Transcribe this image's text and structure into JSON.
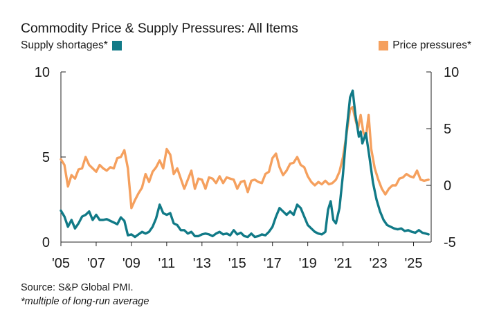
{
  "chart_data": {
    "type": "line",
    "title": "Commodity Price & Supply Pressures: All Items",
    "x_range": [
      2005,
      2026
    ],
    "xticks": [
      {
        "value": 2005,
        "label": "'05"
      },
      {
        "value": 2007,
        "label": "'07"
      },
      {
        "value": 2009,
        "label": "'09"
      },
      {
        "value": 2011,
        "label": "'11"
      },
      {
        "value": 2013,
        "label": "'13"
      },
      {
        "value": 2015,
        "label": "'15"
      },
      {
        "value": 2017,
        "label": "'17"
      },
      {
        "value": 2019,
        "label": "'19"
      },
      {
        "value": 2021,
        "label": "'21"
      },
      {
        "value": 2023,
        "label": "'23"
      },
      {
        "value": 2025,
        "label": "'25"
      }
    ],
    "left_axis": {
      "range": [
        0,
        10
      ],
      "ticks": [
        {
          "value": 0,
          "label": "0"
        },
        {
          "value": 5,
          "label": "5"
        },
        {
          "value": 10,
          "label": "10"
        }
      ]
    },
    "right_axis": {
      "range": [
        -5,
        10
      ],
      "ticks": [
        {
          "value": -5,
          "label": "-5"
        },
        {
          "value": 0,
          "label": "0"
        },
        {
          "value": 5,
          "label": "5"
        },
        {
          "value": 10,
          "label": "10"
        }
      ]
    },
    "series": [
      {
        "name": "Supply shortages*",
        "axis": "left",
        "color": "#117a87",
        "points": [
          [
            2005.0,
            1.85
          ],
          [
            2005.2,
            1.5
          ],
          [
            2005.4,
            0.9
          ],
          [
            2005.6,
            1.3
          ],
          [
            2005.8,
            0.8
          ],
          [
            2006.0,
            1.1
          ],
          [
            2006.2,
            1.5
          ],
          [
            2006.4,
            1.6
          ],
          [
            2006.6,
            1.8
          ],
          [
            2006.8,
            1.3
          ],
          [
            2007.0,
            1.6
          ],
          [
            2007.2,
            1.3
          ],
          [
            2007.4,
            1.3
          ],
          [
            2007.6,
            1.35
          ],
          [
            2007.8,
            1.25
          ],
          [
            2008.0,
            1.15
          ],
          [
            2008.2,
            1.05
          ],
          [
            2008.4,
            1.45
          ],
          [
            2008.6,
            1.25
          ],
          [
            2008.8,
            0.4
          ],
          [
            2009.0,
            0.45
          ],
          [
            2009.2,
            0.3
          ],
          [
            2009.4,
            0.45
          ],
          [
            2009.6,
            0.6
          ],
          [
            2009.8,
            0.5
          ],
          [
            2010.0,
            0.6
          ],
          [
            2010.2,
            0.9
          ],
          [
            2010.4,
            1.4
          ],
          [
            2010.6,
            2.2
          ],
          [
            2010.8,
            1.7
          ],
          [
            2011.0,
            1.6
          ],
          [
            2011.2,
            1.7
          ],
          [
            2011.4,
            1.1
          ],
          [
            2011.6,
            1.0
          ],
          [
            2011.8,
            0.7
          ],
          [
            2012.0,
            0.7
          ],
          [
            2012.2,
            0.5
          ],
          [
            2012.4,
            0.6
          ],
          [
            2012.6,
            0.35
          ],
          [
            2012.8,
            0.35
          ],
          [
            2013.0,
            0.45
          ],
          [
            2013.2,
            0.5
          ],
          [
            2013.4,
            0.45
          ],
          [
            2013.6,
            0.35
          ],
          [
            2013.8,
            0.5
          ],
          [
            2014.0,
            0.6
          ],
          [
            2014.2,
            0.45
          ],
          [
            2014.4,
            0.5
          ],
          [
            2014.6,
            0.4
          ],
          [
            2014.8,
            0.7
          ],
          [
            2015.0,
            0.45
          ],
          [
            2015.2,
            0.55
          ],
          [
            2015.4,
            0.35
          ],
          [
            2015.6,
            0.3
          ],
          [
            2015.8,
            0.5
          ],
          [
            2016.0,
            0.3
          ],
          [
            2016.2,
            0.35
          ],
          [
            2016.4,
            0.45
          ],
          [
            2016.6,
            0.4
          ],
          [
            2016.8,
            0.6
          ],
          [
            2017.0,
            0.9
          ],
          [
            2017.2,
            1.5
          ],
          [
            2017.4,
            2.0
          ],
          [
            2017.6,
            1.8
          ],
          [
            2017.8,
            1.6
          ],
          [
            2018.0,
            1.8
          ],
          [
            2018.2,
            1.6
          ],
          [
            2018.4,
            2.2
          ],
          [
            2018.6,
            2.0
          ],
          [
            2018.8,
            1.5
          ],
          [
            2019.0,
            1.0
          ],
          [
            2019.2,
            0.8
          ],
          [
            2019.4,
            0.6
          ],
          [
            2019.6,
            0.5
          ],
          [
            2019.8,
            0.45
          ],
          [
            2020.0,
            0.6
          ],
          [
            2020.15,
            1.9
          ],
          [
            2020.3,
            2.4
          ],
          [
            2020.45,
            1.3
          ],
          [
            2020.6,
            1.1
          ],
          [
            2020.8,
            2.0
          ],
          [
            2021.0,
            4.0
          ],
          [
            2021.2,
            6.5
          ],
          [
            2021.4,
            8.5
          ],
          [
            2021.55,
            8.9
          ],
          [
            2021.7,
            7.5
          ],
          [
            2021.9,
            6.2
          ],
          [
            2022.0,
            6.5
          ],
          [
            2022.1,
            5.8
          ],
          [
            2022.3,
            6.4
          ],
          [
            2022.5,
            5.0
          ],
          [
            2022.7,
            3.5
          ],
          [
            2022.9,
            2.5
          ],
          [
            2023.1,
            1.8
          ],
          [
            2023.3,
            1.3
          ],
          [
            2023.5,
            1.0
          ],
          [
            2023.7,
            0.9
          ],
          [
            2023.9,
            0.8
          ],
          [
            2024.1,
            0.75
          ],
          [
            2024.3,
            0.8
          ],
          [
            2024.5,
            0.65
          ],
          [
            2024.7,
            0.7
          ],
          [
            2024.9,
            0.6
          ],
          [
            2025.1,
            0.55
          ],
          [
            2025.3,
            0.7
          ],
          [
            2025.5,
            0.55
          ],
          [
            2025.7,
            0.5
          ],
          [
            2025.85,
            0.45
          ]
        ]
      },
      {
        "name": "Price pressures*",
        "axis": "right",
        "color": "#f5a05e",
        "points": [
          [
            2005.0,
            2.3
          ],
          [
            2005.2,
            1.8
          ],
          [
            2005.4,
            -0.1
          ],
          [
            2005.6,
            0.9
          ],
          [
            2005.8,
            0.6
          ],
          [
            2006.0,
            1.4
          ],
          [
            2006.2,
            1.5
          ],
          [
            2006.4,
            2.5
          ],
          [
            2006.6,
            1.8
          ],
          [
            2006.8,
            1.5
          ],
          [
            2007.0,
            1.2
          ],
          [
            2007.2,
            1.8
          ],
          [
            2007.4,
            1.5
          ],
          [
            2007.6,
            1.3
          ],
          [
            2007.8,
            1.6
          ],
          [
            2008.0,
            1.5
          ],
          [
            2008.2,
            2.4
          ],
          [
            2008.4,
            2.5
          ],
          [
            2008.6,
            3.1
          ],
          [
            2008.8,
            1.5
          ],
          [
            2009.0,
            -2.0
          ],
          [
            2009.2,
            -1.3
          ],
          [
            2009.4,
            -0.7
          ],
          [
            2009.6,
            -0.2
          ],
          [
            2009.8,
            1.0
          ],
          [
            2010.0,
            0.3
          ],
          [
            2010.2,
            1.2
          ],
          [
            2010.4,
            1.6
          ],
          [
            2010.6,
            2.2
          ],
          [
            2010.8,
            1.5
          ],
          [
            2011.0,
            3.2
          ],
          [
            2011.2,
            2.7
          ],
          [
            2011.4,
            1.0
          ],
          [
            2011.6,
            1.5
          ],
          [
            2011.8,
            0.6
          ],
          [
            2012.0,
            -0.3
          ],
          [
            2012.2,
            0.5
          ],
          [
            2012.4,
            1.3
          ],
          [
            2012.6,
            -0.3
          ],
          [
            2012.8,
            0.6
          ],
          [
            2013.0,
            0.5
          ],
          [
            2013.2,
            -0.3
          ],
          [
            2013.4,
            0.7
          ],
          [
            2013.6,
            0.6
          ],
          [
            2013.8,
            0.2
          ],
          [
            2014.0,
            0.8
          ],
          [
            2014.2,
            0.2
          ],
          [
            2014.4,
            0.7
          ],
          [
            2014.6,
            0.6
          ],
          [
            2014.8,
            0.5
          ],
          [
            2015.0,
            -0.3
          ],
          [
            2015.2,
            0.3
          ],
          [
            2015.4,
            0.4
          ],
          [
            2015.6,
            -0.6
          ],
          [
            2015.8,
            0.4
          ],
          [
            2016.0,
            0.5
          ],
          [
            2016.2,
            0.3
          ],
          [
            2016.4,
            0.2
          ],
          [
            2016.6,
            1.0
          ],
          [
            2016.8,
            1.2
          ],
          [
            2017.0,
            2.4
          ],
          [
            2017.2,
            2.8
          ],
          [
            2017.4,
            1.6
          ],
          [
            2017.6,
            0.9
          ],
          [
            2017.8,
            1.3
          ],
          [
            2018.0,
            1.9
          ],
          [
            2018.2,
            2.0
          ],
          [
            2018.4,
            2.5
          ],
          [
            2018.6,
            1.8
          ],
          [
            2018.8,
            1.6
          ],
          [
            2019.0,
            0.8
          ],
          [
            2019.2,
            0.3
          ],
          [
            2019.4,
            0.0
          ],
          [
            2019.6,
            0.3
          ],
          [
            2019.8,
            0.1
          ],
          [
            2020.0,
            0.4
          ],
          [
            2020.2,
            0.1
          ],
          [
            2020.4,
            0.2
          ],
          [
            2020.6,
            0.5
          ],
          [
            2020.8,
            1.2
          ],
          [
            2021.0,
            2.5
          ],
          [
            2021.2,
            4.5
          ],
          [
            2021.4,
            6.7
          ],
          [
            2021.55,
            6.9
          ],
          [
            2021.7,
            5.8
          ],
          [
            2021.85,
            5.0
          ],
          [
            2022.0,
            6.2
          ],
          [
            2022.15,
            4.7
          ],
          [
            2022.3,
            4.2
          ],
          [
            2022.45,
            6.2
          ],
          [
            2022.6,
            3.2
          ],
          [
            2022.8,
            1.5
          ],
          [
            2023.0,
            0.5
          ],
          [
            2023.2,
            -0.3
          ],
          [
            2023.4,
            -0.8
          ],
          [
            2023.6,
            -0.3
          ],
          [
            2023.8,
            0.0
          ],
          [
            2024.0,
            0.0
          ],
          [
            2024.2,
            0.6
          ],
          [
            2024.4,
            0.7
          ],
          [
            2024.6,
            1.0
          ],
          [
            2024.8,
            0.8
          ],
          [
            2025.0,
            0.7
          ],
          [
            2025.2,
            1.3
          ],
          [
            2025.4,
            0.5
          ],
          [
            2025.6,
            0.4
          ],
          [
            2025.85,
            0.5
          ]
        ]
      }
    ]
  },
  "title": "Commodity Price & Supply Pressures: All Items",
  "legend": {
    "left_label": "Supply shortages*",
    "right_label": "Price pressures*"
  },
  "footnotes": {
    "source": "Source: S&P Global PMI.",
    "note": "*multiple of long-run average"
  }
}
